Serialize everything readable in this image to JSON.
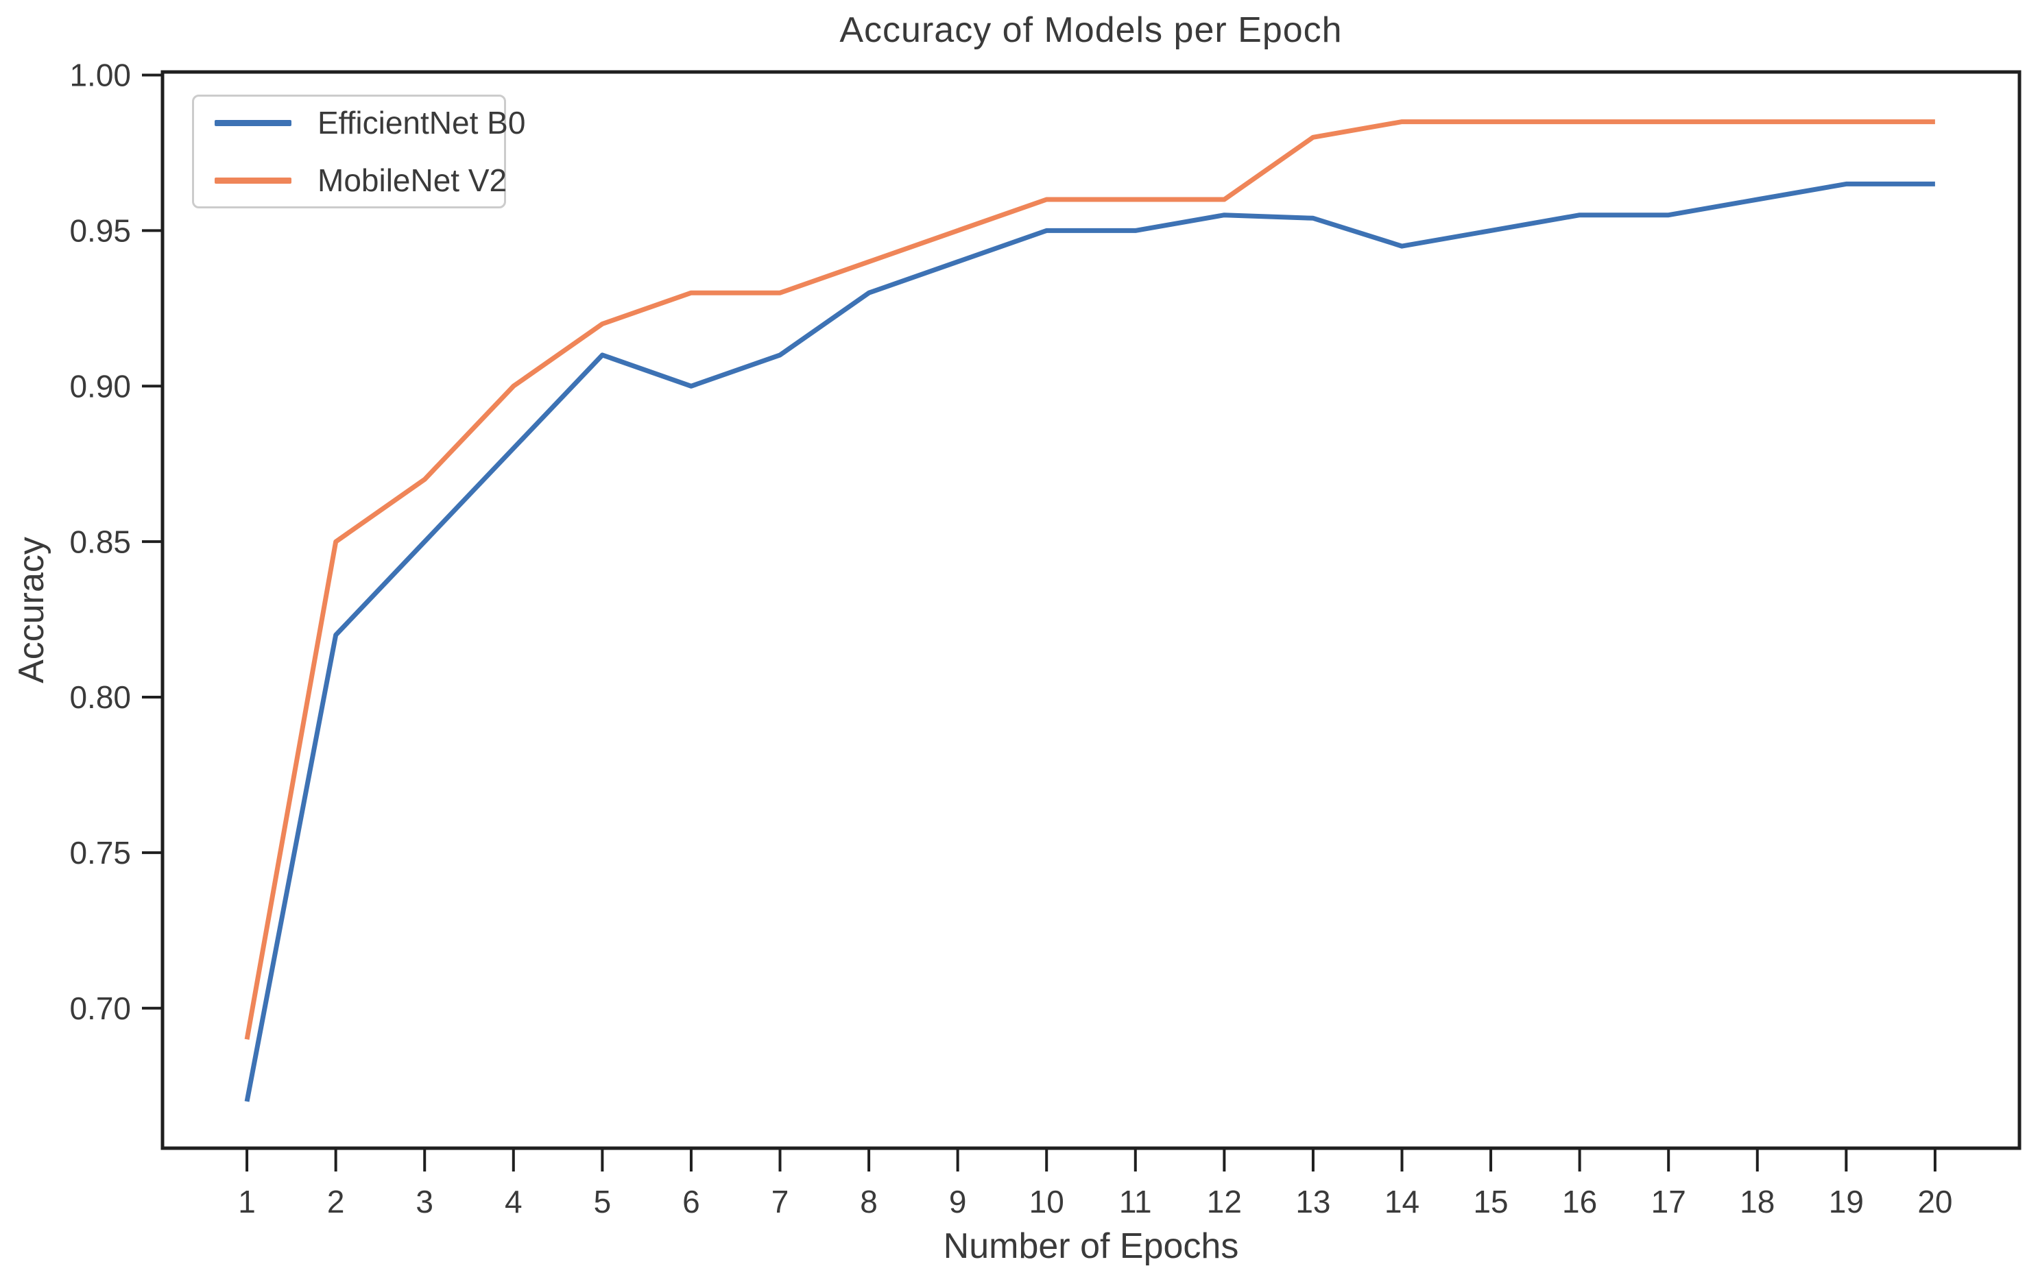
{
  "chart_data": {
    "type": "line",
    "title": "Accuracy of Models per Epoch",
    "xlabel": "Number of Epochs",
    "ylabel": "Accuracy",
    "x": [
      1,
      2,
      3,
      4,
      5,
      6,
      7,
      8,
      9,
      10,
      11,
      12,
      13,
      14,
      15,
      16,
      17,
      18,
      19,
      20
    ],
    "xtick_labels": [
      "1",
      "2",
      "3",
      "4",
      "5",
      "6",
      "7",
      "8",
      "9",
      "10",
      "11",
      "12",
      "13",
      "14",
      "15",
      "16",
      "17",
      "18",
      "19",
      "20"
    ],
    "yticks": [
      0.7,
      0.75,
      0.8,
      0.85,
      0.9,
      0.95,
      1.0
    ],
    "ytick_labels": [
      "0.70",
      "0.75",
      "0.80",
      "0.85",
      "0.90",
      "0.95",
      "1.00"
    ],
    "xlim": [
      0.05,
      20.95
    ],
    "ylim": [
      0.655,
      1.001
    ],
    "grid": false,
    "legend_position": "upper left",
    "axis_color": "#1f1f1f",
    "text_color": "#3a3a3a",
    "series": [
      {
        "name": "EfficientNet B0",
        "color": "#3d72b4",
        "values": [
          0.67,
          0.82,
          0.85,
          0.88,
          0.91,
          0.9,
          0.91,
          0.93,
          0.94,
          0.95,
          0.95,
          0.955,
          0.954,
          0.945,
          0.95,
          0.955,
          0.955,
          0.96,
          0.965,
          0.965
        ]
      },
      {
        "name": "MobileNet V2",
        "color": "#ef8558",
        "values": [
          0.69,
          0.85,
          0.87,
          0.9,
          0.92,
          0.93,
          0.93,
          0.94,
          0.95,
          0.96,
          0.96,
          0.96,
          0.98,
          0.985,
          0.985,
          0.985,
          0.985,
          0.985,
          0.985,
          0.985
        ]
      }
    ]
  }
}
